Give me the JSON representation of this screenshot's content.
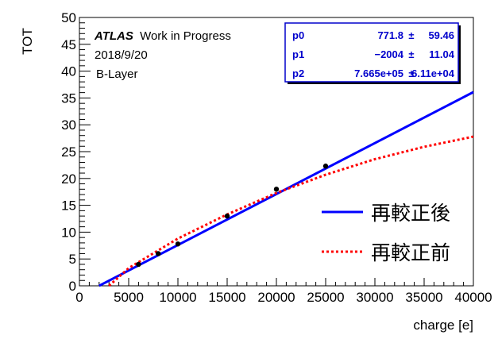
{
  "chart_data": {
    "type": "line",
    "xlabel": "charge [e]",
    "ylabel": "TOT",
    "xlim": [
      0,
      40000
    ],
    "ylim": [
      0,
      50
    ],
    "x_ticks": [
      0,
      5000,
      10000,
      15000,
      20000,
      25000,
      30000,
      35000,
      40000
    ],
    "y_ticks": [
      0,
      5,
      10,
      15,
      20,
      25,
      30,
      35,
      40,
      45,
      50
    ],
    "grid": false,
    "points": [
      {
        "x": 6000,
        "y": 4.0
      },
      {
        "x": 8000,
        "y": 6.0
      },
      {
        "x": 10000,
        "y": 7.8
      },
      {
        "x": 15000,
        "y": 13.0
      },
      {
        "x": 20000,
        "y": 18.0
      },
      {
        "x": 25000,
        "y": 22.3
      }
    ],
    "series": [
      {
        "name": "再較正後",
        "style": "solid",
        "color": "#0000ff",
        "x": [
          2000,
          40000
        ],
        "y": [
          0.0,
          36.1
        ]
      },
      {
        "name": "再較正前",
        "style": "dotted",
        "color": "#ff0000",
        "x": [
          3000,
          5000,
          10000,
          15000,
          20000,
          25000,
          30000,
          35000,
          40000
        ],
        "y": [
          0.0,
          3.3,
          8.8,
          13.3,
          17.3,
          20.7,
          23.6,
          25.9,
          27.8
        ]
      }
    ],
    "annotations": {
      "atlas_bold": "ATLAS",
      "atlas_rest": "Work in Progress",
      "date": "2018/9/20",
      "layer": "B-Layer"
    },
    "stats": [
      {
        "name": "p0",
        "value": "771.8",
        "error": "59.46"
      },
      {
        "name": "p1",
        "value": "−2004",
        "error": "11.04"
      },
      {
        "name": "p2",
        "value": "7.665e+05",
        "error": "6.11e+04"
      }
    ],
    "pm_symbol": "±",
    "legend": {
      "position": "bottom-right",
      "entries": [
        "再較正後",
        "再較正前"
      ]
    }
  }
}
